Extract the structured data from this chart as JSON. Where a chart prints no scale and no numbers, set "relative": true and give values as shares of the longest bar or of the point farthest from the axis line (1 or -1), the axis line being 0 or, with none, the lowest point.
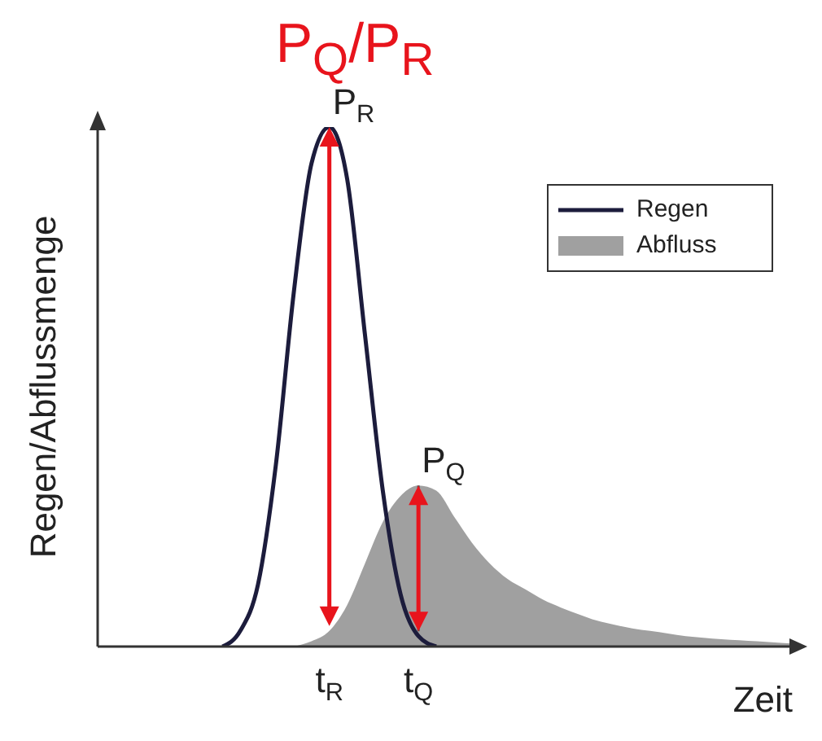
{
  "chart_data": {
    "type": "line",
    "title": "P$_{Q}$/P$_{R}$",
    "xlabel": "Zeit",
    "ylabel": "Regen/Abflussmenge",
    "relative": true,
    "legend": "top right",
    "annotations": [
      {
        "text": "P$_{R}$",
        "x": "t$_{R}$",
        "y": 1
      },
      {
        "text": "P$_{Q}$",
        "x": "t$_{Q}$",
        "y": 0.31
      }
    ],
    "categories": [
      null,
      null,
      null,
      null,
      null,
      null,
      null,
      null,
      null,
      null,
      null,
      null,
      null,
      "t$_{R}$",
      null,
      null,
      null,
      null,
      "t$_{Q}$",
      null,
      null,
      null,
      null,
      null,
      null,
      null,
      null,
      null,
      null,
      null,
      null,
      null,
      null,
      null,
      null,
      null,
      null,
      null,
      null,
      null
    ],
    "series": [
      {
        "name": "Regen",
        "type": "line",
        "color": "#1c1c3c",
        "values": [
          null,
          null,
          null,
          null,
          null,
          null,
          null,
          0,
          0.03,
          0.12,
          0.35,
          0.68,
          0.93,
          1,
          0.9,
          0.6,
          0.3,
          0.1,
          0.02,
          0,
          null,
          null,
          null,
          null,
          null,
          null,
          null,
          null,
          null,
          null,
          null,
          null,
          null,
          null,
          null,
          null,
          null,
          null,
          null,
          null
        ]
      },
      {
        "name": "Abfluss",
        "type": "area",
        "color": "#a0a0a0",
        "values": [
          null,
          null,
          null,
          null,
          null,
          null,
          null,
          null,
          null,
          null,
          null,
          0,
          0.01,
          0.03,
          0.08,
          0.16,
          0.24,
          0.29,
          0.31,
          0.3,
          0.25,
          0.2,
          0.16,
          0.13,
          0.11,
          0.09,
          0.075,
          0.062,
          0.05,
          0.042,
          0.035,
          0.03,
          0.025,
          0.02,
          0.017,
          0.014,
          0.012,
          0.01,
          0.008,
          0.006
        ]
      }
    ]
  }
}
